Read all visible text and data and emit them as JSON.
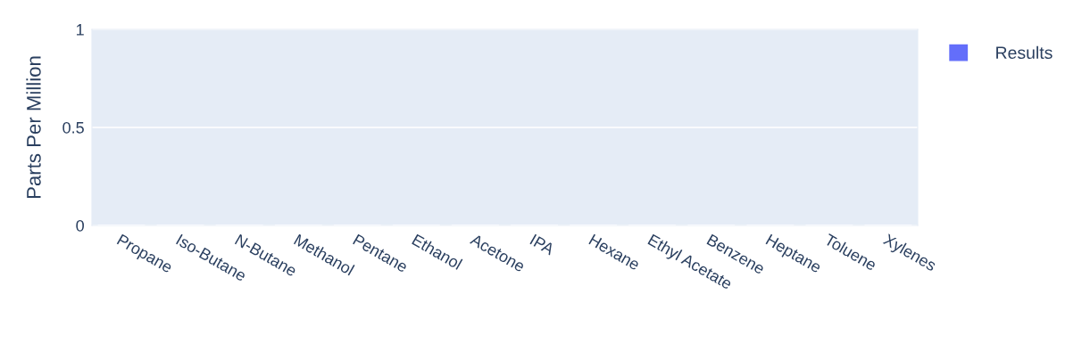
{
  "chart_data": {
    "type": "bar",
    "ylabel": "Parts Per Million",
    "categories": [
      "Propane",
      "Iso-Butane",
      "N-Butane",
      "Methanol",
      "Pentane",
      "Ethanol",
      "Acetone",
      "IPA",
      "Hexane",
      "Ethyl Acetate",
      "Benzene",
      "Heptane",
      "Toluene",
      "Xylenes"
    ],
    "series": [
      {
        "name": "Results",
        "color": "#636efa",
        "values": [
          0,
          0,
          0,
          0,
          0,
          0,
          0,
          0,
          0,
          0,
          0,
          0,
          0,
          0
        ]
      }
    ],
    "ylim": [
      0,
      1
    ],
    "yticks": [
      0,
      0.5,
      1
    ],
    "grid": "y",
    "legend": "top right"
  }
}
